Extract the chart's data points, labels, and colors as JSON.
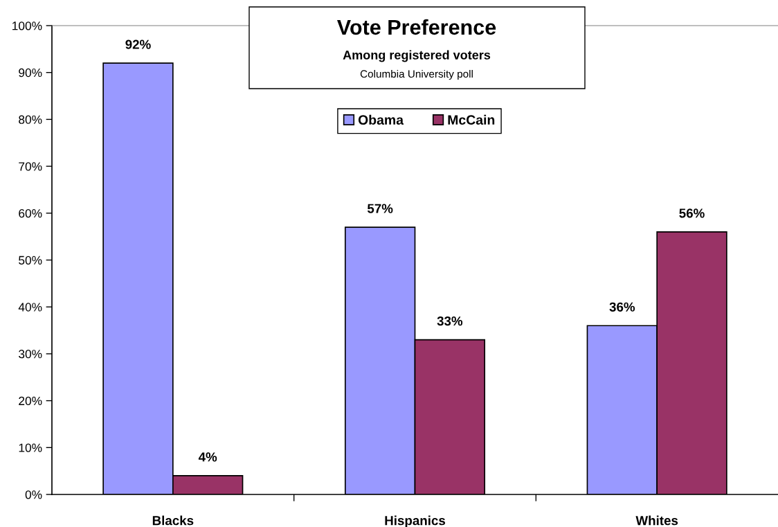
{
  "chart_data": {
    "type": "bar",
    "title": "Vote Preference",
    "subtitle": "Among registered voters",
    "annotations": [
      "Columbia University poll"
    ],
    "categories": [
      "Blacks",
      "Hispanics",
      "Whites"
    ],
    "series": [
      {
        "name": "Obama",
        "color": "#9999ff",
        "values": [
          92,
          57,
          36
        ],
        "value_labels": [
          "92%",
          "57%",
          "36%"
        ]
      },
      {
        "name": "McCain",
        "color": "#993366",
        "values": [
          4,
          33,
          56
        ],
        "value_labels": [
          "4%",
          "33%",
          "56%"
        ]
      }
    ],
    "ylim": [
      0,
      100
    ],
    "yticks": [
      {
        "value": 0,
        "label": "0%"
      },
      {
        "value": 10,
        "label": "10%"
      },
      {
        "value": 20,
        "label": "20%"
      },
      {
        "value": 30,
        "label": "30%"
      },
      {
        "value": 40,
        "label": "40%"
      },
      {
        "value": 50,
        "label": "50%"
      },
      {
        "value": 60,
        "label": "60%"
      },
      {
        "value": 70,
        "label": "70%"
      },
      {
        "value": 80,
        "label": "80%"
      },
      {
        "value": 90,
        "label": "90%"
      },
      {
        "value": 100,
        "label": "100%"
      }
    ],
    "legend": "top"
  }
}
